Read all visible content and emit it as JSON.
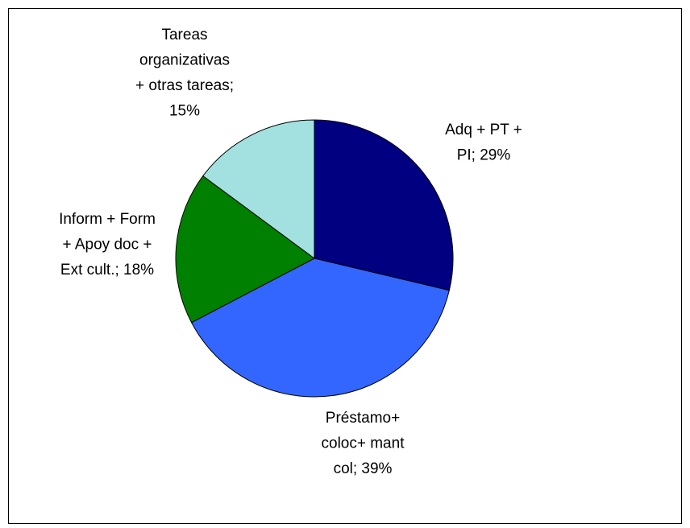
{
  "chart_data": {
    "type": "pie",
    "values": [
      29,
      39,
      18,
      15
    ],
    "value_labels": [
      [
        "Adq + PT +",
        "PI; 29%"
      ],
      [
        "Préstamo+",
        "coloc+ mant",
        "col; 39%"
      ],
      [
        "Inform + Form",
        "+ Apoy doc +",
        "Ext cult.; 18%"
      ],
      [
        "Tareas",
        "organizativas",
        "+ otras tareas;",
        "15%"
      ]
    ],
    "colors": [
      "#000080",
      "#3366ff",
      "#008000",
      "#a3e0e0"
    ]
  }
}
